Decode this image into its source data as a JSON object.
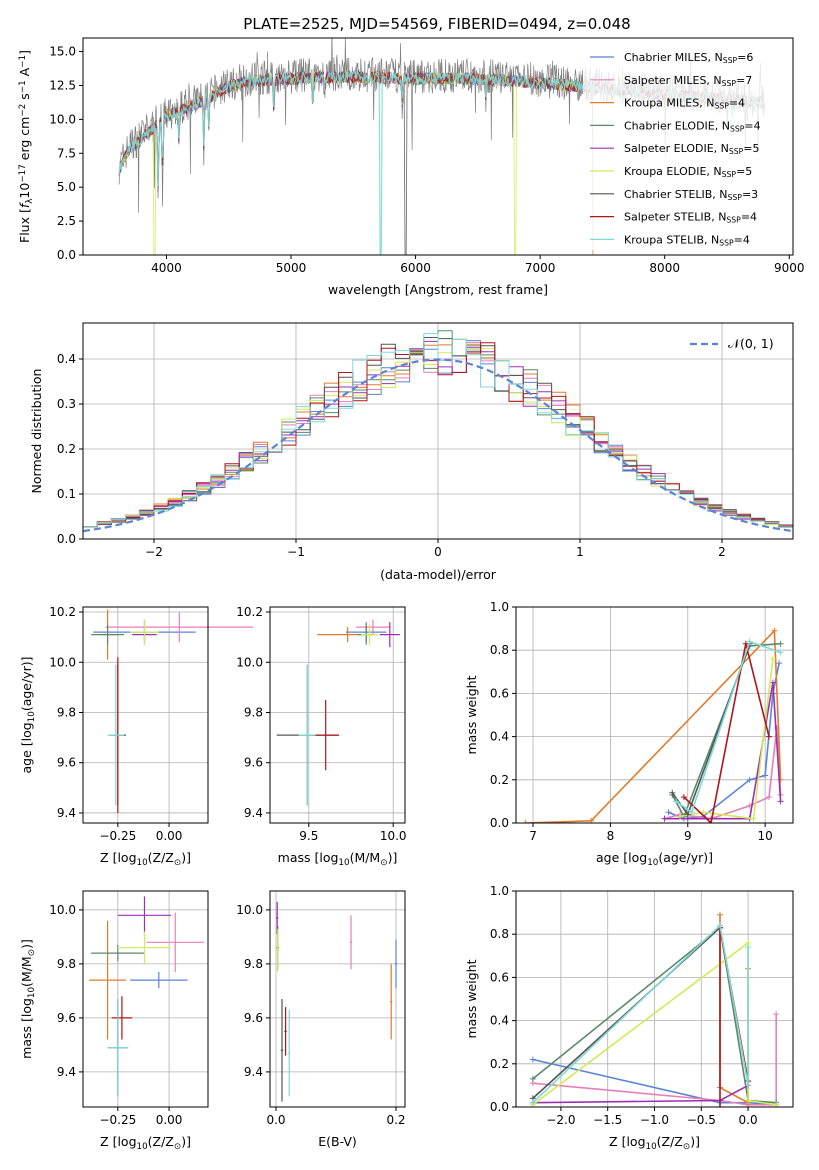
{
  "figure_title": "PLATE=2525, MJD=54569, FIBERID=0494, z=0.048",
  "colors": {
    "Chabrier MILES": "#5b84d6",
    "Salpeter MILES": "#e67fba",
    "Kroupa MILES": "#e07b2a",
    "Chabrier ELODIE": "#5a8a68",
    "Salpeter ELODIE": "#9b30b5",
    "Kroupa ELODIE": "#d2ea57",
    "Chabrier STELIB": "#555555",
    "Salpeter STELIB": "#b0151a",
    "Kroupa STELIB": "#7fd8d8",
    "normal_line": "#5b84d6",
    "grid": "#b0b0b0"
  },
  "models": [
    "Chabrier MILES",
    "Salpeter MILES",
    "Kroupa MILES",
    "Chabrier ELODIE",
    "Salpeter ELODIE",
    "Kroupa ELODIE",
    "Chabrier STELIB",
    "Salpeter STELIB",
    "Kroupa STELIB"
  ],
  "chart_data": [
    {
      "id": "spectrum",
      "type": "line",
      "xlabel": "wavelength [Angstrom, rest frame]",
      "ylabel_pre": "Flux [",
      "ylabel_f": "f",
      "ylabel_sub": "λ",
      "ylabel_mid": "10",
      "ylabel_exp": "−17",
      "ylabel_post1": " erg cm",
      "ylabel_exp2": "−2",
      "ylabel_post2": " s",
      "ylabel_exp3": "−1",
      "ylabel_post3": " A",
      "ylabel_exp4": "−1",
      "ylabel_end": "]",
      "xlim": [
        3330,
        9030
      ],
      "ylim": [
        0,
        16
      ],
      "xticks": [
        4000,
        5000,
        6000,
        7000,
        8000,
        9000
      ],
      "yticks": [
        "0.0",
        "2.5",
        "5.0",
        "7.5",
        "10.0",
        "12.5",
        "15.0"
      ],
      "ytick_values": [
        0,
        2.5,
        5,
        7.5,
        10,
        12.5,
        15
      ],
      "legend": [
        {
          "name": "Chabrier MILES",
          "nssp": "6"
        },
        {
          "name": "Salpeter MILES",
          "nssp": "7"
        },
        {
          "name": "Kroupa MILES",
          "nssp": "4"
        },
        {
          "name": "Chabrier ELODIE",
          "nssp": "4"
        },
        {
          "name": "Salpeter ELODIE",
          "nssp": "5"
        },
        {
          "name": "Kroupa ELODIE",
          "nssp": "5"
        },
        {
          "name": "Chabrier STELIB",
          "nssp": "3"
        },
        {
          "name": "Salpeter STELIB",
          "nssp": "4"
        },
        {
          "name": "Kroupa STELIB",
          "nssp": "4"
        }
      ],
      "legend_nssp_label": "N",
      "legend_nssp_sub": "SSP",
      "continuum": [
        [
          3620,
          6.5
        ],
        [
          3700,
          8.0
        ],
        [
          3800,
          8.8
        ],
        [
          3900,
          9.6
        ],
        [
          4000,
          10.4
        ],
        [
          4100,
          10.8
        ],
        [
          4200,
          11.2
        ],
        [
          4300,
          11.6
        ],
        [
          4400,
          12.1
        ],
        [
          4500,
          12.6
        ],
        [
          4600,
          12.9
        ],
        [
          4800,
          13.1
        ],
        [
          5000,
          13.2
        ],
        [
          5200,
          13.3
        ],
        [
          5500,
          13.3
        ],
        [
          6000,
          13.2
        ],
        [
          6500,
          13.2
        ],
        [
          7000,
          12.9
        ],
        [
          7500,
          12.5
        ],
        [
          8000,
          12.0
        ],
        [
          8500,
          11.7
        ],
        [
          8800,
          11.4
        ]
      ],
      "absorption_lines": [
        [
          3933,
          3.5
        ],
        [
          3968,
          4.0
        ],
        [
          4101,
          8.0
        ],
        [
          4300,
          7.5
        ],
        [
          4340,
          9.0
        ],
        [
          4861,
          10.5
        ],
        [
          5175,
          10.5
        ],
        [
          5270,
          11.5
        ],
        [
          5893,
          10.8
        ],
        [
          6563,
          11.5
        ],
        [
          8498,
          10.5
        ],
        [
          8542,
          10.0
        ],
        [
          8662,
          10.2
        ]
      ],
      "gaps": [
        [
          3905,
          0,
          "Kroupa ELODIE"
        ],
        [
          5720,
          0,
          "Kroupa STELIB"
        ],
        [
          5920,
          0,
          "Chabrier STELIB"
        ],
        [
          6800,
          0,
          "Kroupa ELODIE"
        ]
      ],
      "kroupa_miles_end": 7420
    },
    {
      "id": "residuals",
      "type": "histogram",
      "xlabel": "(data-model)/error",
      "ylabel": "Normed distribution",
      "xlim": [
        -2.5,
        2.5
      ],
      "ylim": [
        0,
        0.48
      ],
      "xticks": [
        -2,
        -1,
        0,
        1,
        2
      ],
      "xtick_labels": [
        "−2",
        "−1",
        "0",
        "1",
        "2"
      ],
      "yticks": [
        0.0,
        0.1,
        0.2,
        0.3,
        0.4
      ],
      "ytick_labels": [
        "0.0",
        "0.1",
        "0.2",
        "0.3",
        "0.4"
      ],
      "bin_width": 0.1,
      "legend_label": "𝒩(0, 1)",
      "normal_mean": 0,
      "normal_sigma": 1
    },
    {
      "id": "age_vs_Z",
      "type": "errorbar",
      "xlabel_pre": "Z [log",
      "xlabel_sub": "10",
      "xlabel_post": "(Z/Z",
      "xlabel_end": ")]",
      "ylabel_pre": "age  [log",
      "ylabel_sub": "10",
      "ylabel_post": "(age/yr)]",
      "xlim": [
        -0.42,
        0.19
      ],
      "ylim": [
        9.36,
        10.22
      ],
      "xticks": [
        -0.25,
        0.0
      ],
      "xtick_labels": [
        "−0.25",
        "0.00"
      ],
      "yticks": [
        9.4,
        9.6,
        9.8,
        10.0,
        10.2
      ],
      "ytick_labels": [
        "9.4",
        "9.6",
        "9.8",
        "10.0",
        "10.2"
      ],
      "points": [
        {
          "model": "Chabrier MILES",
          "x": -0.12,
          "y": 10.12,
          "xerr": 0.25,
          "yerr": 0.05
        },
        {
          "model": "Salpeter MILES",
          "x": 0.05,
          "y": 10.14,
          "xerr": 0.36,
          "yerr": 0.06
        },
        {
          "model": "Kroupa MILES",
          "x": -0.3,
          "y": 10.11,
          "xerr": 0.04,
          "yerr": 0.1
        },
        {
          "model": "Chabrier ELODIE",
          "x": -0.3,
          "y": 10.11,
          "xerr": 0.08,
          "yerr": 0.04
        },
        {
          "model": "Salpeter ELODIE",
          "x": -0.12,
          "y": 10.11,
          "xerr": 0.06,
          "yerr": 0.02
        },
        {
          "model": "Kroupa ELODIE",
          "x": -0.12,
          "y": 10.12,
          "xerr": 0.07,
          "yerr": 0.05
        },
        {
          "model": "Chabrier STELIB",
          "x": -0.25,
          "y": 9.71,
          "xerr": 0.04,
          "yerr": 0.28
        },
        {
          "model": "Salpeter STELIB",
          "x": -0.25,
          "y": 9.71,
          "xerr": 0.02,
          "yerr": 0.31
        },
        {
          "model": "Kroupa STELIB",
          "x": -0.26,
          "y": 9.71,
          "xerr": 0.04,
          "yerr": 0.28
        }
      ]
    },
    {
      "id": "age_vs_mass",
      "type": "errorbar",
      "xlabel_pre": "mass [log",
      "xlabel_sub": "10",
      "xlabel_post": "(M/M",
      "xlabel_end": ")]",
      "xlim": [
        9.27,
        10.07
      ],
      "ylim": [
        9.36,
        10.22
      ],
      "xticks": [
        9.5,
        10.0
      ],
      "xtick_labels": [
        "9.5",
        "10.0"
      ],
      "yticks": [
        9.4,
        9.6,
        9.8,
        10.0,
        10.2
      ],
      "ytick_labels": [
        "9.4",
        "9.6",
        "9.8",
        "10.0",
        "10.2"
      ],
      "points": [
        {
          "model": "Chabrier MILES",
          "x": 9.84,
          "y": 10.12,
          "xerr": 0.12,
          "yerr": 0.04
        },
        {
          "model": "Salpeter MILES",
          "x": 9.88,
          "y": 10.14,
          "xerr": 0.1,
          "yerr": 0.03
        },
        {
          "model": "Kroupa MILES",
          "x": 9.73,
          "y": 10.11,
          "xerr": 0.18,
          "yerr": 0.03
        },
        {
          "model": "Chabrier ELODIE",
          "x": 9.84,
          "y": 10.11,
          "xerr": 0.05,
          "yerr": 0.04
        },
        {
          "model": "Salpeter ELODIE",
          "x": 9.98,
          "y": 10.11,
          "xerr": 0.06,
          "yerr": 0.05
        },
        {
          "model": "Kroupa ELODIE",
          "x": 9.86,
          "y": 10.11,
          "xerr": 0.05,
          "yerr": 0.04
        },
        {
          "model": "Chabrier STELIB",
          "x": 9.49,
          "y": 9.71,
          "xerr": 0.18,
          "yerr": 0.28
        },
        {
          "model": "Salpeter STELIB",
          "x": 9.6,
          "y": 9.71,
          "xerr": 0.08,
          "yerr": 0.14
        },
        {
          "model": "Kroupa STELIB",
          "x": 9.49,
          "y": 9.71,
          "xerr": 0.05,
          "yerr": 0.28
        }
      ]
    },
    {
      "id": "mass_weight_vs_age",
      "type": "line",
      "xlabel_pre": "age  [log",
      "xlabel_sub": "10",
      "xlabel_post": "(age/yr)]",
      "ylabel": "mass weight",
      "xlim": [
        6.78,
        10.36
      ],
      "ylim": [
        0,
        1
      ],
      "xticks": [
        7,
        8,
        9,
        10
      ],
      "yticks": [
        0.0,
        0.2,
        0.4,
        0.6,
        0.8,
        1.0
      ],
      "ytick_labels": [
        "0.0",
        "0.2",
        "0.4",
        "0.6",
        "0.8",
        "1.0"
      ],
      "series": [
        {
          "model": "Chabrier MILES",
          "x": [
            8.75,
            8.95,
            9.2,
            9.8,
            10.0,
            10.1,
            10.18
          ],
          "y": [
            0.05,
            0.02,
            0.03,
            0.2,
            0.22,
            0.6,
            0.74
          ]
        },
        {
          "model": "Salpeter MILES",
          "x": [
            8.7,
            8.9,
            9.3,
            9.8,
            10.05,
            10.15,
            10.2
          ],
          "y": [
            0.02,
            0.04,
            0.02,
            0.08,
            0.12,
            0.44,
            0.13
          ]
        },
        {
          "model": "Kroupa MILES",
          "x": [
            6.9,
            7.75,
            10.12,
            10.2
          ],
          "y": [
            0.0,
            0.01,
            0.89,
            0.2
          ]
        },
        {
          "model": "Chabrier ELODIE",
          "x": [
            8.8,
            8.95,
            9.8,
            10.2
          ],
          "y": [
            0.13,
            0.03,
            0.82,
            0.83
          ]
        },
        {
          "model": "Salpeter ELODIE",
          "x": [
            8.7,
            9.0,
            9.8,
            10.1,
            10.2
          ],
          "y": [
            0.02,
            0.02,
            0.02,
            0.65,
            0.1
          ]
        },
        {
          "model": "Kroupa ELODIE",
          "x": [
            8.9,
            9.2,
            9.85,
            10.1
          ],
          "y": [
            0.03,
            0.05,
            0.02,
            0.76
          ]
        },
        {
          "model": "Chabrier STELIB",
          "x": [
            8.8,
            9.0,
            9.8
          ],
          "y": [
            0.14,
            0.04,
            0.83
          ]
        },
        {
          "model": "Salpeter STELIB",
          "x": [
            8.95,
            9.3,
            9.75,
            10.05
          ],
          "y": [
            0.12,
            0.0,
            0.83,
            0.4
          ]
        },
        {
          "model": "Kroupa STELIB",
          "x": [
            8.85,
            9.05,
            9.8,
            10.2
          ],
          "y": [
            0.1,
            0.05,
            0.84,
            0.79
          ]
        }
      ]
    },
    {
      "id": "mass_vs_Z",
      "type": "errorbar",
      "xlabel_pre": "Z [log",
      "xlabel_sub": "10",
      "xlabel_post": "(Z/Z",
      "xlabel_end": ")]",
      "ylabel_pre": "mass [log",
      "ylabel_sub": "10",
      "ylabel_post": "(M/M",
      "ylabel_end": ")]",
      "xlim": [
        -0.42,
        0.19
      ],
      "ylim": [
        9.27,
        10.07
      ],
      "xticks": [
        -0.25,
        0.0
      ],
      "xtick_labels": [
        "−0.25",
        "0.00"
      ],
      "yticks": [
        9.4,
        9.6,
        9.8,
        10.0
      ],
      "ytick_labels": [
        "9.4",
        "9.6",
        "9.8",
        "10.0"
      ],
      "points": [
        {
          "model": "Chabrier MILES",
          "x": -0.05,
          "y": 9.74,
          "xerr": 0.14,
          "yerr": 0.03
        },
        {
          "model": "Salpeter MILES",
          "x": 0.03,
          "y": 9.88,
          "xerr": 0.14,
          "yerr": 0.11
        },
        {
          "model": "Kroupa MILES",
          "x": -0.3,
          "y": 9.74,
          "xerr": 0.09,
          "yerr": 0.22
        },
        {
          "model": "Chabrier ELODIE",
          "x": -0.25,
          "y": 9.84,
          "xerr": 0.13,
          "yerr": 0.03
        },
        {
          "model": "Salpeter ELODIE",
          "x": -0.12,
          "y": 9.98,
          "xerr": 0.13,
          "yerr": 0.07
        },
        {
          "model": "Kroupa ELODIE",
          "x": -0.12,
          "y": 9.86,
          "xerr": 0.13,
          "yerr": 0.06
        },
        {
          "model": "Chabrier STELIB",
          "x": -0.25,
          "y": 9.49,
          "xerr": 0.05,
          "yerr": 0.18
        },
        {
          "model": "Salpeter STELIB",
          "x": -0.23,
          "y": 9.6,
          "xerr": 0.05,
          "yerr": 0.08
        },
        {
          "model": "Kroupa STELIB",
          "x": -0.25,
          "y": 9.49,
          "xerr": 0.05,
          "yerr": 0.18
        }
      ]
    },
    {
      "id": "mass_vs_EBV",
      "type": "errorbar",
      "xlabel": "E(B-V)",
      "xlim": [
        -0.01,
        0.215
      ],
      "ylim": [
        9.27,
        10.07
      ],
      "xticks": [
        0.0,
        0.2
      ],
      "xtick_labels": [
        "0.0",
        "0.2"
      ],
      "yticks": [
        9.4,
        9.6,
        9.8,
        10.0
      ],
      "ytick_labels": [
        "9.4",
        "9.6",
        "9.8",
        "10.0"
      ],
      "points": [
        {
          "model": "Chabrier MILES",
          "x": 0.2,
          "y": 9.8,
          "xerr": 0.002,
          "yerr": 0.09
        },
        {
          "model": "Salpeter MILES",
          "x": 0.125,
          "y": 9.88,
          "xerr": 0.002,
          "yerr": 0.1
        },
        {
          "model": "Kroupa MILES",
          "x": 0.192,
          "y": 9.66,
          "xerr": 0.002,
          "yerr": 0.14
        },
        {
          "model": "Chabrier ELODIE",
          "x": 0.003,
          "y": 9.86,
          "xerr": 0.002,
          "yerr": 0.08
        },
        {
          "model": "Salpeter ELODIE",
          "x": 0.002,
          "y": 9.97,
          "xerr": 0.002,
          "yerr": 0.06
        },
        {
          "model": "Kroupa ELODIE",
          "x": 0.003,
          "y": 9.85,
          "xerr": 0.002,
          "yerr": 0.08
        },
        {
          "model": "Chabrier STELIB",
          "x": 0.01,
          "y": 9.48,
          "xerr": 0.002,
          "yerr": 0.19
        },
        {
          "model": "Salpeter STELIB",
          "x": 0.016,
          "y": 9.55,
          "xerr": 0.002,
          "yerr": 0.09
        },
        {
          "model": "Kroupa STELIB",
          "x": 0.022,
          "y": 9.47,
          "xerr": 0.002,
          "yerr": 0.16
        }
      ]
    },
    {
      "id": "mass_weight_vs_Z",
      "type": "line",
      "xlabel_pre": "Z [log",
      "xlabel_sub": "10",
      "xlabel_post": "(Z/Z",
      "xlabel_end": ")]",
      "ylabel": "mass weight",
      "xlim": [
        -2.48,
        0.48
      ],
      "ylim": [
        0,
        1
      ],
      "xticks": [
        -2.0,
        -1.5,
        -1.0,
        -0.5,
        0.0
      ],
      "xtick_labels": [
        "−2.0",
        "−1.5",
        "−1.0",
        "−0.5",
        "0.0"
      ],
      "yticks": [
        0.0,
        0.2,
        0.4,
        0.6,
        0.8,
        1.0
      ],
      "ytick_labels": [
        "0.0",
        "0.2",
        "0.4",
        "0.6",
        "0.8",
        "1.0"
      ],
      "series": [
        {
          "model": "Chabrier MILES",
          "x": [
            -2.3,
            -0.3,
            0.0,
            0.3
          ],
          "y": [
            0.22,
            0.02,
            0.02,
            0.01
          ]
        },
        {
          "model": "Salpeter MILES",
          "x": [
            -2.3,
            -0.3,
            0.0,
            0.3,
            0.3
          ],
          "y": [
            0.11,
            0.03,
            0.01,
            0.01,
            0.43
          ]
        },
        {
          "model": "Kroupa MILES",
          "x": [
            -0.3,
            -0.3,
            0.0,
            0.0
          ],
          "y": [
            0.89,
            0.09,
            0.02,
            0.64
          ]
        },
        {
          "model": "Chabrier ELODIE",
          "x": [
            -2.3,
            -0.3,
            0.0,
            0.3
          ],
          "y": [
            0.13,
            0.83,
            0.03,
            0.02
          ]
        },
        {
          "model": "Salpeter ELODIE",
          "x": [
            -2.3,
            -0.3,
            0.0
          ],
          "y": [
            0.02,
            0.03,
            0.1
          ]
        },
        {
          "model": "Kroupa ELODIE",
          "x": [
            -2.3,
            0.0,
            0.0,
            0.3
          ],
          "y": [
            0.01,
            0.76,
            0.03,
            0.01
          ]
        },
        {
          "model": "Chabrier STELIB",
          "x": [
            -2.3,
            -0.3,
            0.0
          ],
          "y": [
            0.04,
            0.83,
            0.12
          ]
        },
        {
          "model": "Salpeter STELIB",
          "x": [
            -0.3,
            -0.3,
            0.0,
            0.0
          ],
          "y": [
            0.0,
            0.83,
            0.12,
            0.1
          ]
        },
        {
          "model": "Kroupa STELIB",
          "x": [
            -2.3,
            -0.3,
            0.0,
            0.0
          ],
          "y": [
            0.02,
            0.84,
            0.1,
            0.74
          ]
        }
      ]
    }
  ]
}
